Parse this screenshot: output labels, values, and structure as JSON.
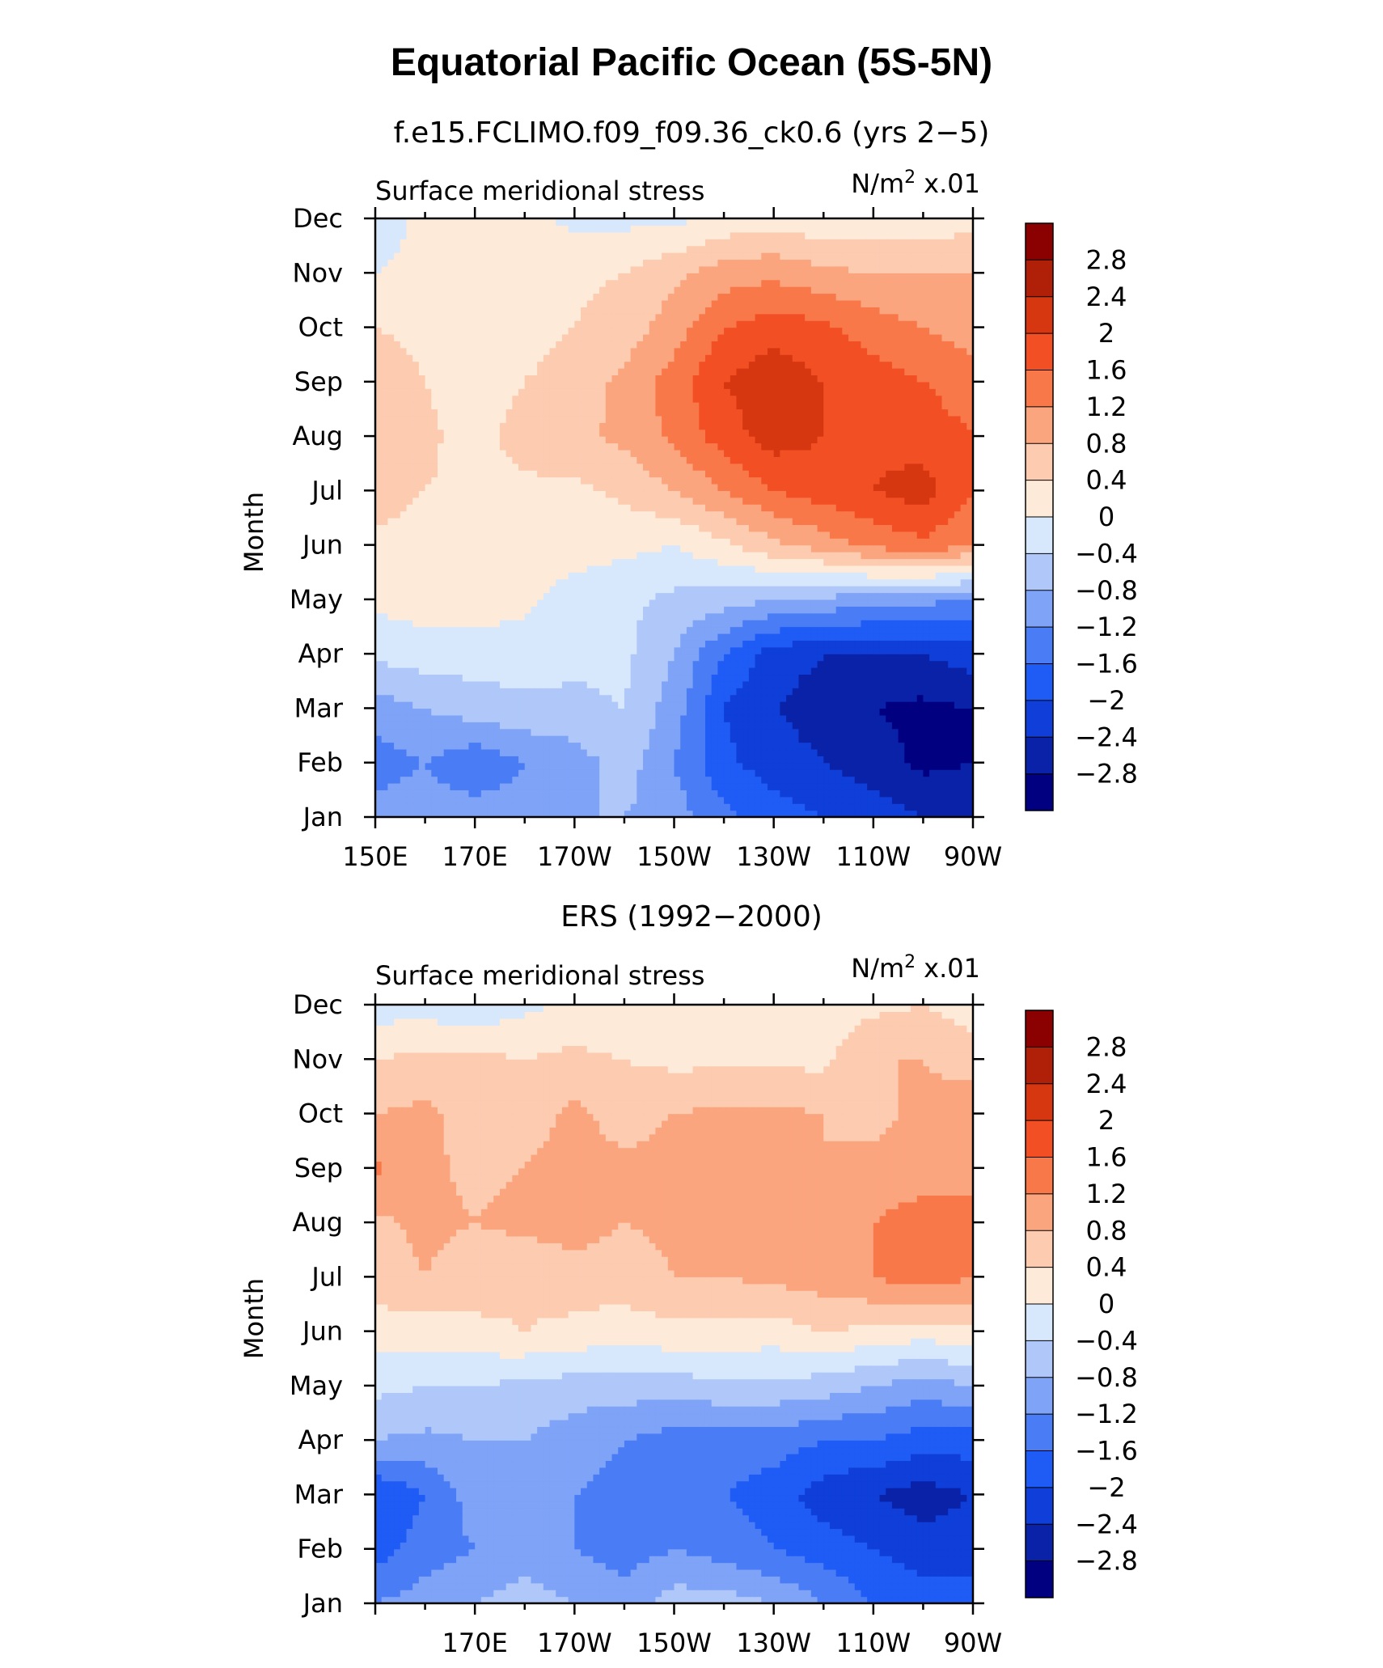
{
  "figure_title": "Equatorial Pacific Ocean (5S-5N)",
  "colors": [
    "#000080",
    "#0A22A8",
    "#0F3FD8",
    "#1F5BF5",
    "#4A7DF5",
    "#7FA3F7",
    "#AFC8F9",
    "#D8E8FC",
    "#FDEAD8",
    "#FCCBB0",
    "#FBA57E",
    "#F9784A",
    "#F25024",
    "#D63610",
    "#B02008",
    "#8B0000"
  ],
  "chart_data": [
    {
      "type": "heatmap",
      "title": "f.e15.FCLIMO.f09_f09.36_ck0.6 (yrs 2−5)",
      "left_label": "Surface meridional stress",
      "units_label": "N/m",
      "units_sup": "2",
      "units_scale": "x.01",
      "ylabel": "Month",
      "yticks": [
        "Jan",
        "Feb",
        "Mar",
        "Apr",
        "May",
        "Jun",
        "Jul",
        "Aug",
        "Sep",
        "Oct",
        "Nov",
        "Dec"
      ],
      "xticks": [
        "150E",
        "170E",
        "170W",
        "150W",
        "130W",
        "110W",
        "90W"
      ],
      "colorbar_labels": [
        "2.8",
        "2.4",
        "2",
        "1.6",
        "1.2",
        "0.8",
        "0.4",
        "0",
        "−0.4",
        "−0.8",
        "−1.2",
        "−1.6",
        "−2",
        "−2.4",
        "−2.8"
      ],
      "colorbar_levels": [
        -2.8,
        -2.4,
        -2,
        -1.6,
        -1.2,
        -0.8,
        -0.4,
        0,
        0.4,
        0.8,
        1.2,
        1.6,
        2,
        2.4,
        2.8
      ],
      "x_lon": [
        150,
        160,
        170,
        180,
        190,
        200,
        210,
        220,
        230,
        240,
        250,
        260,
        270
      ],
      "y_month": [
        1,
        2,
        3,
        4,
        5,
        6,
        7,
        8,
        9,
        10,
        11,
        12
      ],
      "values": [
        [
          -1.0,
          -1.0,
          -1.0,
          -1.0,
          -0.8,
          -0.8,
          -1.0,
          -1.5,
          -1.8,
          -2.0,
          -2.2,
          -2.4,
          -2.4
        ],
        [
          -1.4,
          -1.2,
          -1.5,
          -1.2,
          -1.0,
          -0.6,
          -1.2,
          -1.9,
          -2.2,
          -2.4,
          -2.6,
          -2.9,
          -2.8
        ],
        [
          -1.0,
          -0.8,
          -0.6,
          -0.5,
          -0.5,
          -0.4,
          -1.0,
          -2.0,
          -2.4,
          -2.6,
          -2.8,
          -2.9,
          -2.8
        ],
        [
          -0.3,
          -0.2,
          -0.2,
          -0.2,
          -0.3,
          -0.3,
          -0.8,
          -1.6,
          -2.2,
          -2.4,
          -2.4,
          -2.4,
          -2.2
        ],
        [
          0.1,
          0.2,
          0.2,
          0.1,
          -0.2,
          -0.3,
          -0.5,
          -0.6,
          -0.8,
          -0.9,
          -1.0,
          -1.1,
          -1.2
        ],
        [
          0.3,
          0.2,
          0.2,
          0.2,
          0.2,
          0.1,
          0.0,
          0.3,
          0.7,
          1.0,
          1.3,
          1.5,
          1.2
        ],
        [
          0.6,
          0.4,
          0.3,
          0.3,
          0.3,
          0.5,
          0.8,
          1.2,
          1.6,
          1.8,
          2.0,
          2.2,
          1.6
        ],
        [
          0.8,
          0.5,
          0.2,
          0.6,
          0.7,
          0.9,
          1.3,
          1.8,
          2.2,
          2.0,
          1.9,
          1.8,
          1.6
        ],
        [
          0.6,
          0.4,
          0.2,
          0.4,
          0.6,
          0.9,
          1.4,
          2.0,
          2.3,
          2.0,
          1.8,
          1.6,
          1.4
        ],
        [
          0.4,
          0.3,
          0.2,
          0.2,
          0.4,
          0.6,
          1.0,
          1.6,
          1.8,
          1.7,
          1.4,
          1.2,
          1.0
        ],
        [
          0.0,
          0.1,
          0.2,
          0.3,
          0.3,
          0.4,
          0.7,
          1.0,
          1.1,
          0.9,
          0.8,
          0.8,
          0.8
        ],
        [
          -0.2,
          0.1,
          0.1,
          0.1,
          -0.1,
          -0.1,
          -0.1,
          0.1,
          0.2,
          0.1,
          0.1,
          0.1,
          0.3
        ]
      ]
    },
    {
      "type": "heatmap",
      "title": "ERS (1992−2000)",
      "left_label": "Surface meridional stress",
      "units_label": "N/m",
      "units_sup": "2",
      "units_scale": "x.01",
      "ylabel": "Month",
      "yticks": [
        "Jan",
        "Feb",
        "Mar",
        "Apr",
        "May",
        "Jun",
        "Jul",
        "Aug",
        "Sep",
        "Oct",
        "Nov",
        "Dec"
      ],
      "xticks": [
        "170E",
        "170W",
        "150W",
        "130W",
        "110W",
        "90W"
      ],
      "colorbar_labels": [
        "2.8",
        "2.4",
        "2",
        "1.6",
        "1.2",
        "0.8",
        "0.4",
        "0",
        "−0.4",
        "−0.8",
        "−1.2",
        "−1.6",
        "−2",
        "−2.4",
        "−2.8"
      ],
      "colorbar_levels": [
        -2.8,
        -2.4,
        -2,
        -1.6,
        -1.2,
        -0.8,
        -0.4,
        0,
        0.4,
        0.8,
        1.2,
        1.6,
        2,
        2.4,
        2.8
      ],
      "x_lon": [
        150,
        160,
        170,
        180,
        190,
        200,
        210,
        220,
        230,
        240,
        250,
        260,
        270
      ],
      "y_month": [
        1,
        2,
        3,
        4,
        5,
        6,
        7,
        8,
        9,
        10,
        11,
        12
      ],
      "values": [
        [
          -1.2,
          -1.0,
          -0.8,
          -0.6,
          -0.8,
          -1.0,
          -0.6,
          -0.6,
          -0.8,
          -1.2,
          -1.6,
          -1.8,
          -1.8
        ],
        [
          -1.8,
          -1.4,
          -1.2,
          -1.0,
          -1.2,
          -1.4,
          -1.2,
          -1.4,
          -1.6,
          -1.8,
          -2.0,
          -2.2,
          -2.2
        ],
        [
          -2.0,
          -1.6,
          -1.0,
          -1.0,
          -1.2,
          -1.4,
          -1.4,
          -1.6,
          -1.8,
          -2.2,
          -2.4,
          -2.6,
          -2.4
        ],
        [
          -0.8,
          -0.9,
          -0.8,
          -0.8,
          -1.0,
          -1.2,
          -1.4,
          -1.4,
          -1.4,
          -1.6,
          -1.6,
          -1.8,
          -1.8
        ],
        [
          -0.3,
          -0.4,
          -0.4,
          -0.5,
          -0.6,
          -0.6,
          -0.6,
          -0.5,
          -0.5,
          -0.6,
          -0.8,
          -1.0,
          -0.8
        ],
        [
          0.2,
          0.2,
          0.3,
          0.4,
          0.3,
          0.2,
          0.3,
          0.3,
          0.2,
          0.4,
          0.3,
          0.2,
          0.3
        ],
        [
          0.6,
          0.8,
          0.6,
          0.5,
          0.6,
          0.6,
          0.8,
          0.8,
          0.9,
          1.0,
          1.2,
          1.4,
          1.2
        ],
        [
          0.7,
          0.9,
          0.8,
          0.9,
          1.0,
          0.8,
          0.9,
          0.9,
          0.8,
          0.9,
          1.2,
          1.4,
          1.2
        ],
        [
          1.3,
          0.9,
          0.7,
          0.8,
          1.0,
          0.9,
          1.0,
          1.0,
          0.8,
          0.8,
          0.9,
          1.0,
          1.2
        ],
        [
          0.8,
          0.9,
          0.6,
          0.6,
          0.9,
          0.6,
          0.8,
          0.9,
          0.9,
          0.8,
          0.7,
          0.9,
          1.1
        ],
        [
          0.4,
          0.5,
          0.5,
          0.4,
          0.5,
          0.4,
          0.3,
          0.3,
          0.3,
          0.3,
          0.8,
          0.8,
          0.6
        ],
        [
          -0.2,
          -0.2,
          -0.3,
          -0.1,
          0.1,
          0.1,
          0.1,
          0.1,
          0.1,
          0.2,
          0.3,
          0.4,
          0.2
        ]
      ]
    }
  ]
}
